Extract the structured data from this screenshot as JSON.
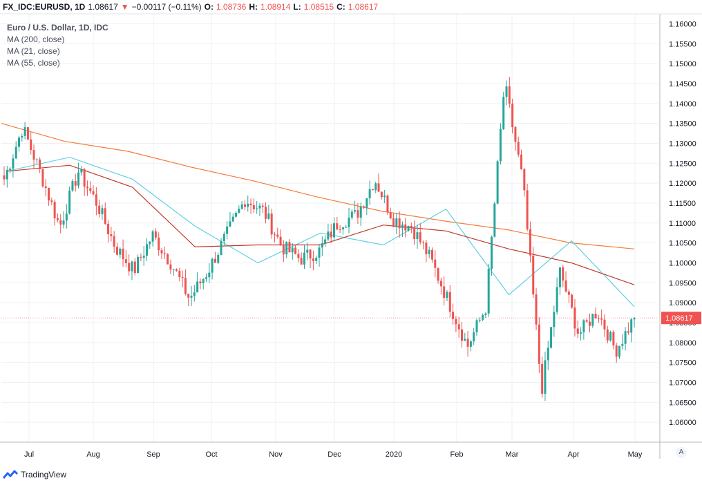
{
  "header": {
    "symbol": "FX_IDC:EURUSD, 1D",
    "last": "1.08617",
    "arrow": "▼",
    "change": "−0.00117 (−0.11%)",
    "o_label": "O:",
    "o_value": "1.08736",
    "h_label": "H:",
    "h_value": "1.08914",
    "l_label": "L:",
    "l_value": "1.08515",
    "c_label": "C:",
    "c_value": "1.08617"
  },
  "legend": {
    "title": "Euro / U.S. Dollar, 1D, IDC",
    "ma200": "MA (200, close)",
    "ma21": "MA (21, close)",
    "ma55": "MA (55, close)"
  },
  "price_tag": "1.08617",
  "footer": {
    "brand": "TradingView"
  },
  "scale_button": "A",
  "colors": {
    "up": "#26a69a",
    "down": "#ef5350",
    "ma200": "#f57c3a",
    "ma21": "#5fd0e0",
    "ma55": "#c0392b",
    "grid": "#eef0f4"
  },
  "chart_data": {
    "type": "candlestick",
    "title": "Euro / U.S. Dollar, 1D, IDC",
    "ylim": [
      1.055,
      1.1625
    ],
    "y_ticks": [
      1.06,
      1.065,
      1.07,
      1.075,
      1.08,
      1.085,
      1.09,
      1.095,
      1.1,
      1.105,
      1.11,
      1.115,
      1.12,
      1.125,
      1.13,
      1.135,
      1.14,
      1.145,
      1.15,
      1.155,
      1.16
    ],
    "x_tick_labels": [
      "Jul",
      "Aug",
      "Sep",
      "Oct",
      "Nov",
      "Dec",
      "2020",
      "Feb",
      "Mar",
      "Apr",
      "May"
    ],
    "grid": true,
    "last_price": 1.08617,
    "price_series": [
      {
        "x": "Jun",
        "close": 1.121
      },
      {
        "x": "Jul",
        "close": 1.134
      },
      {
        "x": "Jul",
        "close": 1.122
      },
      {
        "x": "Aug",
        "close": 1.109
      },
      {
        "x": "Aug",
        "close": 1.123
      },
      {
        "x": "Aug",
        "close": 1.115
      },
      {
        "x": "Sep",
        "close": 1.104
      },
      {
        "x": "Sep",
        "close": 1.098
      },
      {
        "x": "Sep",
        "close": 1.107
      },
      {
        "x": "Sep",
        "close": 1.1
      },
      {
        "x": "Oct",
        "close": 1.091
      },
      {
        "x": "Oct",
        "close": 1.098
      },
      {
        "x": "Oct",
        "close": 1.107
      },
      {
        "x": "Oct",
        "close": 1.116
      },
      {
        "x": "Nov",
        "close": 1.113
      },
      {
        "x": "Nov",
        "close": 1.104
      },
      {
        "x": "Nov",
        "close": 1.101
      },
      {
        "x": "Dec",
        "close": 1.103
      },
      {
        "x": "Dec",
        "close": 1.11
      },
      {
        "x": "Dec",
        "close": 1.112
      },
      {
        "x": "2020",
        "close": 1.121
      },
      {
        "x": "2020",
        "close": 1.111
      },
      {
        "x": "2020",
        "close": 1.109
      },
      {
        "x": "Feb",
        "close": 1.101
      },
      {
        "x": "Feb",
        "close": 1.09
      },
      {
        "x": "Feb",
        "close": 1.079
      },
      {
        "x": "Mar",
        "close": 1.089
      },
      {
        "x": "Mar",
        "close": 1.145
      },
      {
        "x": "Mar",
        "close": 1.12
      },
      {
        "x": "Mar",
        "close": 1.068
      },
      {
        "x": "Apr",
        "close": 1.098
      },
      {
        "x": "Apr",
        "close": 1.082
      },
      {
        "x": "Apr",
        "close": 1.088
      },
      {
        "x": "Apr",
        "close": 1.078
      },
      {
        "x": "May",
        "close": 1.08617
      }
    ],
    "series": [
      {
        "name": "MA (200, close)",
        "values": [
          1.135,
          1.1305,
          1.128,
          1.124,
          1.1205,
          1.1165,
          1.113,
          1.1105,
          1.1083,
          1.105,
          1.1035
        ]
      },
      {
        "name": "MA (21, close)",
        "values": [
          1.123,
          1.1265,
          1.121,
          1.1092,
          1.1,
          1.1075,
          1.1045,
          1.1135,
          1.092,
          1.1055,
          1.089
        ]
      },
      {
        "name": "MA (55, close)",
        "values": [
          1.123,
          1.1245,
          1.119,
          1.104,
          1.1045,
          1.1045,
          1.1095,
          1.108,
          1.1035,
          1.1,
          1.0945
        ]
      }
    ]
  }
}
